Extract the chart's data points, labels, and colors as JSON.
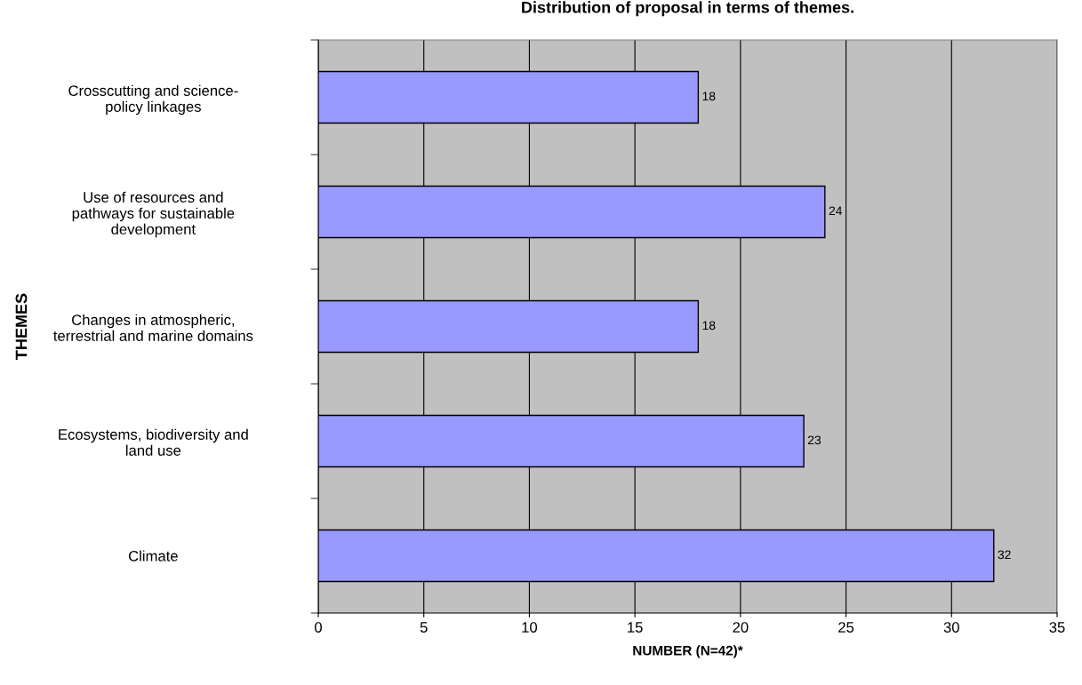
{
  "chart_data": {
    "type": "bar",
    "orientation": "horizontal",
    "title": "Distribution of proposal in terms of themes.",
    "xlabel": "NUMBER (N=42)*",
    "ylabel": "THEMES",
    "categories": [
      "Crosscutting and science-\npolicy linkages",
      "Use of resources and\npathways for sustainable\ndevelopment",
      "Changes in atmospheric,\nterrestrial and marine domains",
      "Ecosystems, biodiversity and\nland use",
      "Climate"
    ],
    "values": [
      18,
      24,
      18,
      23,
      32
    ],
    "color": "#9999ff",
    "xlim": [
      0,
      35
    ],
    "xticks": [
      0,
      5,
      10,
      15,
      20,
      25,
      30,
      35
    ],
    "grid": "x",
    "data_labels": true,
    "legend": false
  }
}
